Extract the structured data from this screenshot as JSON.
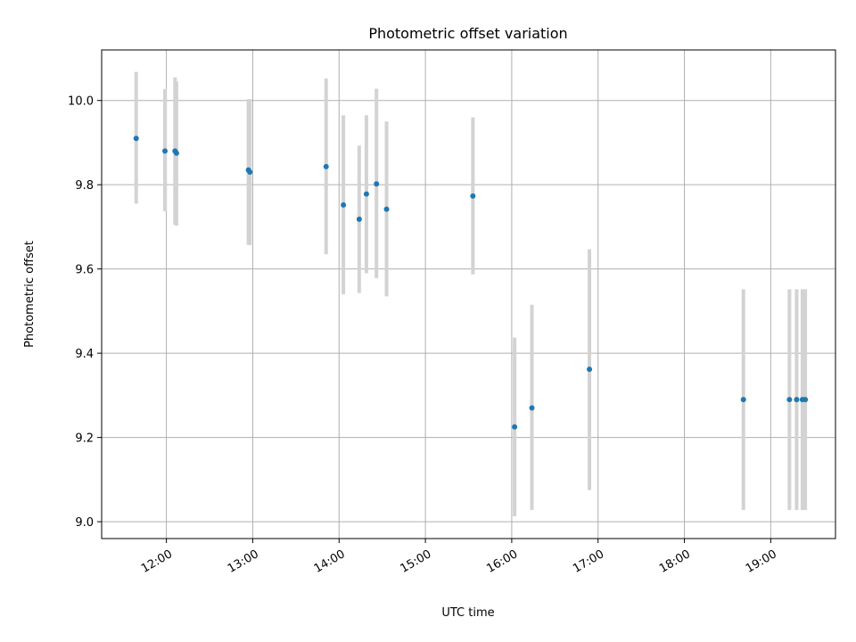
{
  "chart_data": {
    "type": "scatter",
    "title": "Photometric offset variation",
    "xlabel": "UTC time",
    "ylabel": "Photometric offset",
    "xlim": [
      "11:15",
      "19:45"
    ],
    "ylim": [
      8.96,
      10.12
    ],
    "xticks": [
      "12:00",
      "13:00",
      "14:00",
      "15:00",
      "16:00",
      "17:00",
      "18:00",
      "19:00"
    ],
    "yticks": [
      "9.0",
      "9.2",
      "9.4",
      "9.6",
      "9.8",
      "10.0"
    ],
    "grid": true,
    "legend": "none",
    "colors": {
      "point": "#1f77b4",
      "errorbar": "#d3d3d3",
      "grid": "#b0b0b0"
    },
    "points": [
      {
        "x": "11:39",
        "y": 9.91,
        "ylow": 9.755,
        "yhigh": 10.068
      },
      {
        "x": "11:59",
        "y": 9.88,
        "ylow": 9.737,
        "yhigh": 10.027
      },
      {
        "x": "12:06",
        "y": 9.88,
        "ylow": 9.705,
        "yhigh": 10.055
      },
      {
        "x": "12:07",
        "y": 9.875,
        "ylow": 9.703,
        "yhigh": 10.045
      },
      {
        "x": "12:57",
        "y": 9.835,
        "ylow": 9.657,
        "yhigh": 10.003
      },
      {
        "x": "12:58",
        "y": 9.83,
        "ylow": 9.657,
        "yhigh": 10.003
      },
      {
        "x": "13:51",
        "y": 9.843,
        "ylow": 9.635,
        "yhigh": 10.052
      },
      {
        "x": "14:03",
        "y": 9.752,
        "ylow": 9.54,
        "yhigh": 9.965
      },
      {
        "x": "14:14",
        "y": 9.718,
        "ylow": 9.543,
        "yhigh": 9.893
      },
      {
        "x": "14:19",
        "y": 9.778,
        "ylow": 9.59,
        "yhigh": 9.965
      },
      {
        "x": "14:26",
        "y": 9.802,
        "ylow": 9.578,
        "yhigh": 10.028
      },
      {
        "x": "14:33",
        "y": 9.742,
        "ylow": 9.535,
        "yhigh": 9.95
      },
      {
        "x": "15:33",
        "y": 9.773,
        "ylow": 9.587,
        "yhigh": 9.96
      },
      {
        "x": "16:02",
        "y": 9.225,
        "ylow": 9.013,
        "yhigh": 9.437
      },
      {
        "x": "16:14",
        "y": 9.27,
        "ylow": 9.028,
        "yhigh": 9.515
      },
      {
        "x": "16:54",
        "y": 9.362,
        "ylow": 9.075,
        "yhigh": 9.647
      },
      {
        "x": "18:41",
        "y": 9.29,
        "ylow": 9.028,
        "yhigh": 9.552
      },
      {
        "x": "19:13",
        "y": 9.29,
        "ylow": 9.028,
        "yhigh": 9.552
      },
      {
        "x": "19:18",
        "y": 9.29,
        "ylow": 9.028,
        "yhigh": 9.552
      },
      {
        "x": "19:22",
        "y": 9.29,
        "ylow": 9.028,
        "yhigh": 9.552
      },
      {
        "x": "19:24",
        "y": 9.29,
        "ylow": 9.028,
        "yhigh": 9.552
      }
    ]
  }
}
